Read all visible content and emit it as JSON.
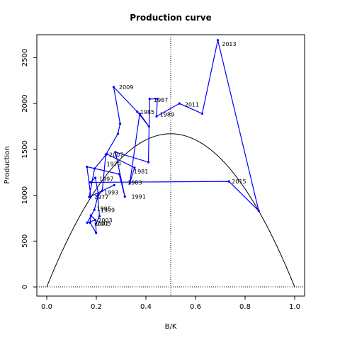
{
  "chart_data": {
    "type": "line",
    "title": "Production curve",
    "xlabel": "B/K",
    "ylabel": "Production",
    "xlim": [
      -0.04,
      1.04
    ],
    "ylim": [
      -100,
      2750
    ],
    "x_ticks": [
      0.0,
      0.2,
      0.4,
      0.6,
      0.8,
      1.0
    ],
    "x_tick_labels": [
      "0.0",
      "0.2",
      "0.4",
      "0.6",
      "0.8",
      "1.0"
    ],
    "y_ticks": [
      0,
      500,
      1000,
      1500,
      2000,
      2500
    ],
    "y_tick_labels": [
      "0",
      "500",
      "1000",
      "1500",
      "2000",
      "2500"
    ],
    "grid": false,
    "reference_lines": {
      "vertical_x": 0.5,
      "horizontal_y": 0
    },
    "curve": {
      "shape": "parabola",
      "max_production": 1670,
      "x_zero": [
        0,
        1
      ],
      "color": "#000000"
    },
    "series": [
      {
        "color": "#0000ff",
        "points": [
          {
            "x": 0.178,
            "y": 985
          },
          {
            "x": 0.162,
            "y": 1310
          },
          {
            "x": 0.292,
            "y": 1230
          },
          {
            "x": 0.315,
            "y": 985
          },
          {
            "x": 0.277,
            "y": 1470
          },
          {
            "x": 0.41,
            "y": 1360
          },
          {
            "x": 0.415,
            "y": 2050
          },
          {
            "x": 0.446,
            "y": 2050
          },
          {
            "x": 0.443,
            "y": 1860
          },
          {
            "x": 0.535,
            "y": 2000
          },
          {
            "x": 0.627,
            "y": 1890
          },
          {
            "x": 0.69,
            "y": 2690
          },
          {
            "x": 0.855,
            "y": 830
          },
          {
            "x": 0.735,
            "y": 1150
          },
          {
            "x": 0.175,
            "y": 1140
          },
          {
            "x": 0.196,
            "y": 1190
          },
          {
            "x": 0.208,
            "y": 1010
          },
          {
            "x": 0.192,
            "y": 840
          },
          {
            "x": 0.163,
            "y": 700
          },
          {
            "x": 0.196,
            "y": 730
          },
          {
            "x": 0.178,
            "y": 780
          },
          {
            "x": 0.175,
            "y": 700
          },
          {
            "x": 0.199,
            "y": 590
          },
          {
            "x": 0.198,
            "y": 690
          },
          {
            "x": 0.213,
            "y": 770
          },
          {
            "x": 0.205,
            "y": 990
          },
          {
            "x": 0.224,
            "y": 1050
          },
          {
            "x": 0.238,
            "y": 1440
          },
          {
            "x": 0.287,
            "y": 1670
          },
          {
            "x": 0.296,
            "y": 1780
          },
          {
            "x": 0.27,
            "y": 2180
          },
          {
            "x": 0.365,
            "y": 1910
          },
          {
            "x": 0.412,
            "y": 1750
          },
          {
            "x": 0.375,
            "y": 1890
          },
          {
            "x": 0.335,
            "y": 1130
          },
          {
            "x": 0.354,
            "y": 1300
          },
          {
            "x": 0.242,
            "y": 1450
          },
          {
            "x": 0.193,
            "y": 1290
          },
          {
            "x": 0.171,
            "y": 980
          },
          {
            "x": 0.272,
            "y": 1110
          }
        ]
      }
    ],
    "point_labels": [
      {
        "text": "1977",
        "x": 0.18,
        "y": 980
      },
      {
        "text": "1979",
        "x": 0.23,
        "y": 1340
      },
      {
        "text": "1981",
        "x": 0.34,
        "y": 1260
      },
      {
        "text": "1983",
        "x": 0.315,
        "y": 1140
      },
      {
        "text": "1985",
        "x": 0.365,
        "y": 1910
      },
      {
        "text": "1987",
        "x": 0.42,
        "y": 2040
      },
      {
        "text": "1989",
        "x": 0.445,
        "y": 1880
      },
      {
        "text": "1991",
        "x": 0.33,
        "y": 985
      },
      {
        "text": "1993",
        "x": 0.22,
        "y": 1030
      },
      {
        "text": "1995",
        "x": 0.19,
        "y": 855
      },
      {
        "text": "1997",
        "x": 0.2,
        "y": 1180
      },
      {
        "text": "1999",
        "x": 0.205,
        "y": 840
      },
      {
        "text": "2001",
        "x": 0.18,
        "y": 690
      },
      {
        "text": "2003",
        "x": 0.195,
        "y": 725
      },
      {
        "text": "2005",
        "x": 0.19,
        "y": 690
      },
      {
        "text": "2007",
        "x": 0.24,
        "y": 1440
      },
      {
        "text": "2009",
        "x": 0.28,
        "y": 2180
      },
      {
        "text": "2011",
        "x": 0.545,
        "y": 1990
      },
      {
        "text": "2013",
        "x": 0.695,
        "y": 2650
      },
      {
        "text": "2015",
        "x": 0.735,
        "y": 1150
      }
    ]
  }
}
